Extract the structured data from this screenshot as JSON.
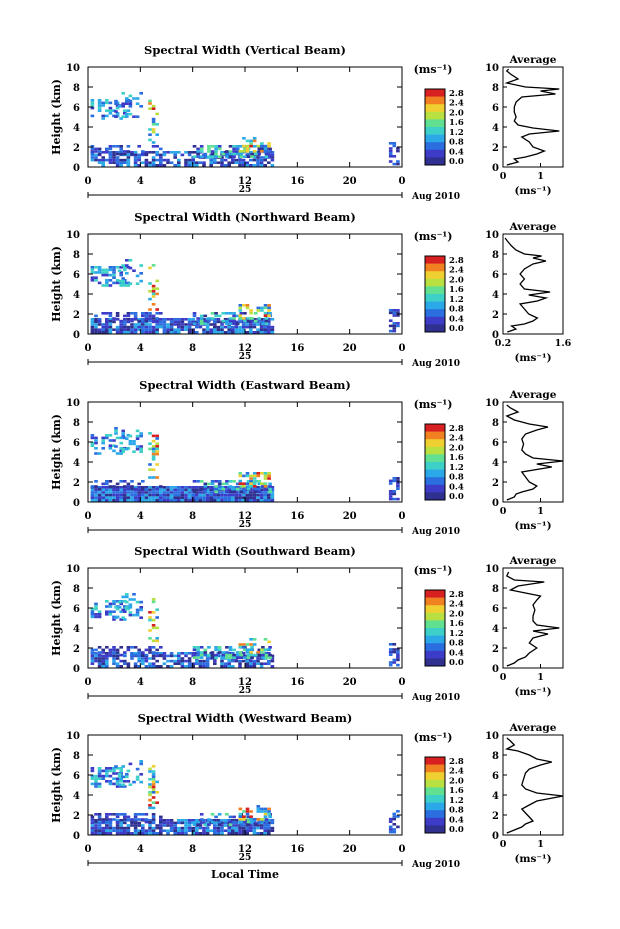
{
  "panel_titles": [
    "Spectral Width (Vertical Beam)",
    "Spectral Width (Northward Beam)",
    "Spectral Width (Eastward Beam)",
    "Spectral Width (Southward Beam)",
    "Spectral Width (Westward Beam)"
  ],
  "y_axis_label": "Height (km)",
  "y_ticks": [
    "0",
    "2",
    "4",
    "6",
    "8",
    "10"
  ],
  "x_ticks": [
    "0",
    "4",
    "8",
    "12",
    "16",
    "20",
    "0"
  ],
  "date_day": "25",
  "date_month_year": "Aug 2010",
  "x_axis_label": "Local Time",
  "colorbar_unit": "(ms⁻¹)",
  "colorbar_ticks": [
    "0.0",
    "0.4",
    "0.8",
    "1.2",
    "1.6",
    "2.0",
    "2.4",
    "2.8"
  ],
  "average_title": "Average",
  "average_unit": "(ms⁻¹)",
  "colors": {
    "scale": [
      "#303090",
      "#3c3cc8",
      "#2a6ee0",
      "#2aa8e8",
      "#3cd0c8",
      "#60e090",
      "#b8e040",
      "#f0d030",
      "#f08020",
      "#d82020"
    ]
  },
  "chart_data": [
    {
      "type": "heatmap",
      "title": "Spectral Width (Vertical Beam)",
      "xlabel": "",
      "ylabel": "Height (km)",
      "xlim": [
        0,
        24
      ],
      "ylim": [
        0,
        10
      ],
      "avg_xticks": [
        "0",
        "1"
      ],
      "avg_xlim": [
        0,
        1.6
      ],
      "avg_profile": [
        [
          0.1,
          0.2
        ],
        [
          0.4,
          0.5
        ],
        [
          0.3,
          0.8
        ],
        [
          0.6,
          1.0
        ],
        [
          0.9,
          1.3
        ],
        [
          1.1,
          1.6
        ],
        [
          0.8,
          2.0
        ],
        [
          0.7,
          2.5
        ],
        [
          0.5,
          3.0
        ],
        [
          0.7,
          3.3
        ],
        [
          1.5,
          3.6
        ],
        [
          0.8,
          3.9
        ],
        [
          0.4,
          4.2
        ],
        [
          0.3,
          4.6
        ],
        [
          0.35,
          5.0
        ],
        [
          0.3,
          5.5
        ],
        [
          0.3,
          6.0
        ],
        [
          0.35,
          6.5
        ],
        [
          0.5,
          7.0
        ],
        [
          1.4,
          7.3
        ],
        [
          1.0,
          7.6
        ],
        [
          1.5,
          7.8
        ],
        [
          0.6,
          8.0
        ],
        [
          0.1,
          8.4
        ],
        [
          0.4,
          8.8
        ],
        [
          0.2,
          9.3
        ],
        [
          0.1,
          9.6
        ],
        [
          0.15,
          9.8
        ]
      ]
    },
    {
      "type": "heatmap",
      "title": "Spectral Width (Northward Beam)",
      "xlabel": "",
      "ylabel": "Height (km)",
      "xlim": [
        0,
        24
      ],
      "ylim": [
        0,
        10
      ],
      "avg_xticks": [
        "0.2",
        "1.6"
      ],
      "avg_xlim": [
        0.2,
        1.6
      ],
      "avg_profile": [
        [
          0.3,
          0.2
        ],
        [
          0.5,
          0.5
        ],
        [
          0.4,
          0.8
        ],
        [
          0.7,
          1.0
        ],
        [
          0.9,
          1.3
        ],
        [
          1.0,
          1.6
        ],
        [
          0.8,
          2.0
        ],
        [
          0.7,
          2.5
        ],
        [
          0.6,
          3.0
        ],
        [
          1.0,
          3.3
        ],
        [
          1.2,
          3.6
        ],
        [
          0.8,
          3.9
        ],
        [
          1.3,
          4.2
        ],
        [
          0.7,
          4.5
        ],
        [
          0.6,
          5.0
        ],
        [
          0.7,
          5.5
        ],
        [
          0.6,
          6.0
        ],
        [
          0.7,
          6.5
        ],
        [
          0.9,
          7.0
        ],
        [
          1.2,
          7.3
        ],
        [
          0.9,
          7.6
        ],
        [
          1.1,
          7.8
        ],
        [
          0.7,
          8.0
        ],
        [
          0.5,
          8.4
        ],
        [
          0.4,
          8.8
        ],
        [
          0.3,
          9.3
        ],
        [
          0.25,
          9.6
        ]
      ]
    },
    {
      "type": "heatmap",
      "title": "Spectral Width (Eastward Beam)",
      "xlabel": "",
      "ylabel": "Height (km)",
      "xlim": [
        0,
        24
      ],
      "ylim": [
        0,
        10
      ],
      "avg_xticks": [
        "0",
        "1"
      ],
      "avg_xlim": [
        0,
        1.6
      ],
      "avg_profile": [
        [
          0.1,
          0.2
        ],
        [
          0.3,
          0.5
        ],
        [
          0.35,
          0.8
        ],
        [
          0.5,
          1.0
        ],
        [
          0.8,
          1.3
        ],
        [
          0.9,
          1.6
        ],
        [
          0.7,
          2.0
        ],
        [
          0.6,
          2.5
        ],
        [
          0.5,
          3.0
        ],
        [
          1.3,
          3.5
        ],
        [
          0.9,
          3.8
        ],
        [
          1.6,
          4.1
        ],
        [
          0.8,
          4.4
        ],
        [
          0.6,
          4.8
        ],
        [
          0.5,
          5.2
        ],
        [
          0.55,
          5.8
        ],
        [
          0.5,
          6.3
        ],
        [
          0.6,
          6.8
        ],
        [
          0.9,
          7.2
        ],
        [
          1.2,
          7.5
        ],
        [
          0.7,
          7.8
        ],
        [
          0.3,
          8.2
        ],
        [
          0.1,
          8.6
        ],
        [
          0.4,
          9.0
        ],
        [
          0.2,
          9.4
        ],
        [
          0.1,
          9.7
        ]
      ]
    },
    {
      "type": "heatmap",
      "title": "Spectral Width (Southward Beam)",
      "xlabel": "",
      "ylabel": "Height (km)",
      "xlim": [
        0,
        24
      ],
      "ylim": [
        0,
        10
      ],
      "avg_xticks": [
        "0",
        "1"
      ],
      "avg_xlim": [
        0,
        1.6
      ],
      "avg_profile": [
        [
          0.1,
          0.2
        ],
        [
          0.3,
          0.5
        ],
        [
          0.4,
          0.8
        ],
        [
          0.6,
          1.1
        ],
        [
          0.7,
          1.5
        ],
        [
          0.9,
          2.0
        ],
        [
          0.7,
          2.5
        ],
        [
          0.8,
          3.0
        ],
        [
          1.2,
          3.4
        ],
        [
          0.8,
          3.7
        ],
        [
          1.5,
          4.0
        ],
        [
          0.9,
          4.3
        ],
        [
          0.8,
          4.7
        ],
        [
          0.8,
          5.2
        ],
        [
          0.85,
          5.8
        ],
        [
          0.8,
          6.3
        ],
        [
          0.9,
          6.8
        ],
        [
          1.0,
          7.2
        ],
        [
          0.6,
          7.5
        ],
        [
          0.2,
          7.8
        ],
        [
          0.4,
          8.2
        ],
        [
          1.1,
          8.6
        ],
        [
          0.3,
          8.8
        ],
        [
          0.1,
          9.2
        ],
        [
          0.15,
          9.6
        ]
      ]
    },
    {
      "type": "heatmap",
      "title": "Spectral Width (Westward Beam)",
      "xlabel": "Local Time",
      "ylabel": "Height (km)",
      "xlim": [
        0,
        24
      ],
      "ylim": [
        0,
        10
      ],
      "avg_xticks": [
        "0",
        "1"
      ],
      "avg_xlim": [
        0,
        1.6
      ],
      "avg_profile": [
        [
          0.1,
          0.2
        ],
        [
          0.3,
          0.5
        ],
        [
          0.5,
          0.8
        ],
        [
          0.6,
          1.1
        ],
        [
          0.8,
          1.4
        ],
        [
          0.7,
          1.8
        ],
        [
          0.6,
          2.2
        ],
        [
          0.5,
          2.6
        ],
        [
          0.7,
          3.0
        ],
        [
          0.9,
          3.4
        ],
        [
          1.6,
          3.9
        ],
        [
          0.9,
          4.2
        ],
        [
          0.6,
          4.6
        ],
        [
          0.5,
          5.0
        ],
        [
          0.55,
          5.6
        ],
        [
          0.6,
          6.2
        ],
        [
          0.7,
          6.6
        ],
        [
          1.0,
          7.0
        ],
        [
          1.3,
          7.3
        ],
        [
          0.9,
          7.6
        ],
        [
          0.7,
          8.0
        ],
        [
          0.4,
          8.4
        ],
        [
          0.1,
          8.6
        ],
        [
          0.3,
          9.0
        ],
        [
          0.2,
          9.4
        ],
        [
          0.1,
          9.7
        ]
      ]
    }
  ]
}
